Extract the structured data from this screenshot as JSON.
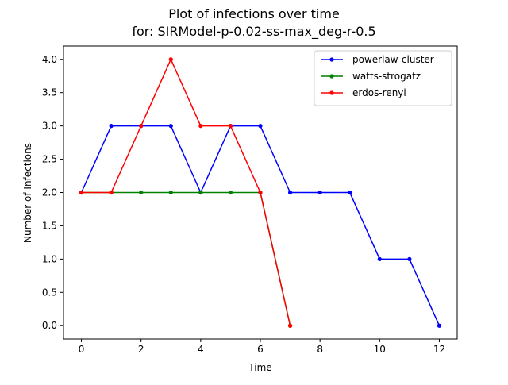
{
  "chart_data": {
    "type": "line",
    "title": "Plot of infections over time",
    "subtitle": "for: SIRModel-p-0.02-ss-max_deg-r-0.5",
    "xlabel": "Time",
    "ylabel": "Number of Infections",
    "xlim": [
      -0.6,
      12.6
    ],
    "ylim": [
      -0.2,
      4.2
    ],
    "xticks": [
      0,
      2,
      4,
      6,
      8,
      10,
      12
    ],
    "xtick_labels": [
      "0",
      "2",
      "4",
      "6",
      "8",
      "10",
      "12"
    ],
    "yticks": [
      0,
      0.5,
      1,
      1.5,
      2,
      2.5,
      3,
      3.5,
      4
    ],
    "ytick_labels": [
      "0.0",
      "0.5",
      "1.0",
      "1.5",
      "2.0",
      "2.5",
      "3.0",
      "3.5",
      "4.0"
    ],
    "grid": false,
    "legend_position": "top-right",
    "series": [
      {
        "name": "powerlaw-cluster",
        "color": "#0000ff",
        "x": [
          0,
          1,
          2,
          3,
          4,
          5,
          6,
          7,
          8,
          9,
          10,
          11,
          12
        ],
        "y": [
          2,
          3,
          3,
          3,
          2,
          3,
          3,
          2,
          2,
          2,
          1,
          1,
          0
        ]
      },
      {
        "name": "watts-strogatz",
        "color": "#008000",
        "x": [
          0,
          1,
          2,
          3,
          4,
          5,
          6,
          7
        ],
        "y": [
          2,
          2,
          2,
          2,
          2,
          2,
          2,
          0
        ]
      },
      {
        "name": "erdos-renyi",
        "color": "#ff0000",
        "x": [
          0,
          1,
          2,
          3,
          4,
          5,
          6,
          7
        ],
        "y": [
          2,
          2,
          3,
          4,
          3,
          3,
          2,
          0
        ]
      }
    ]
  }
}
